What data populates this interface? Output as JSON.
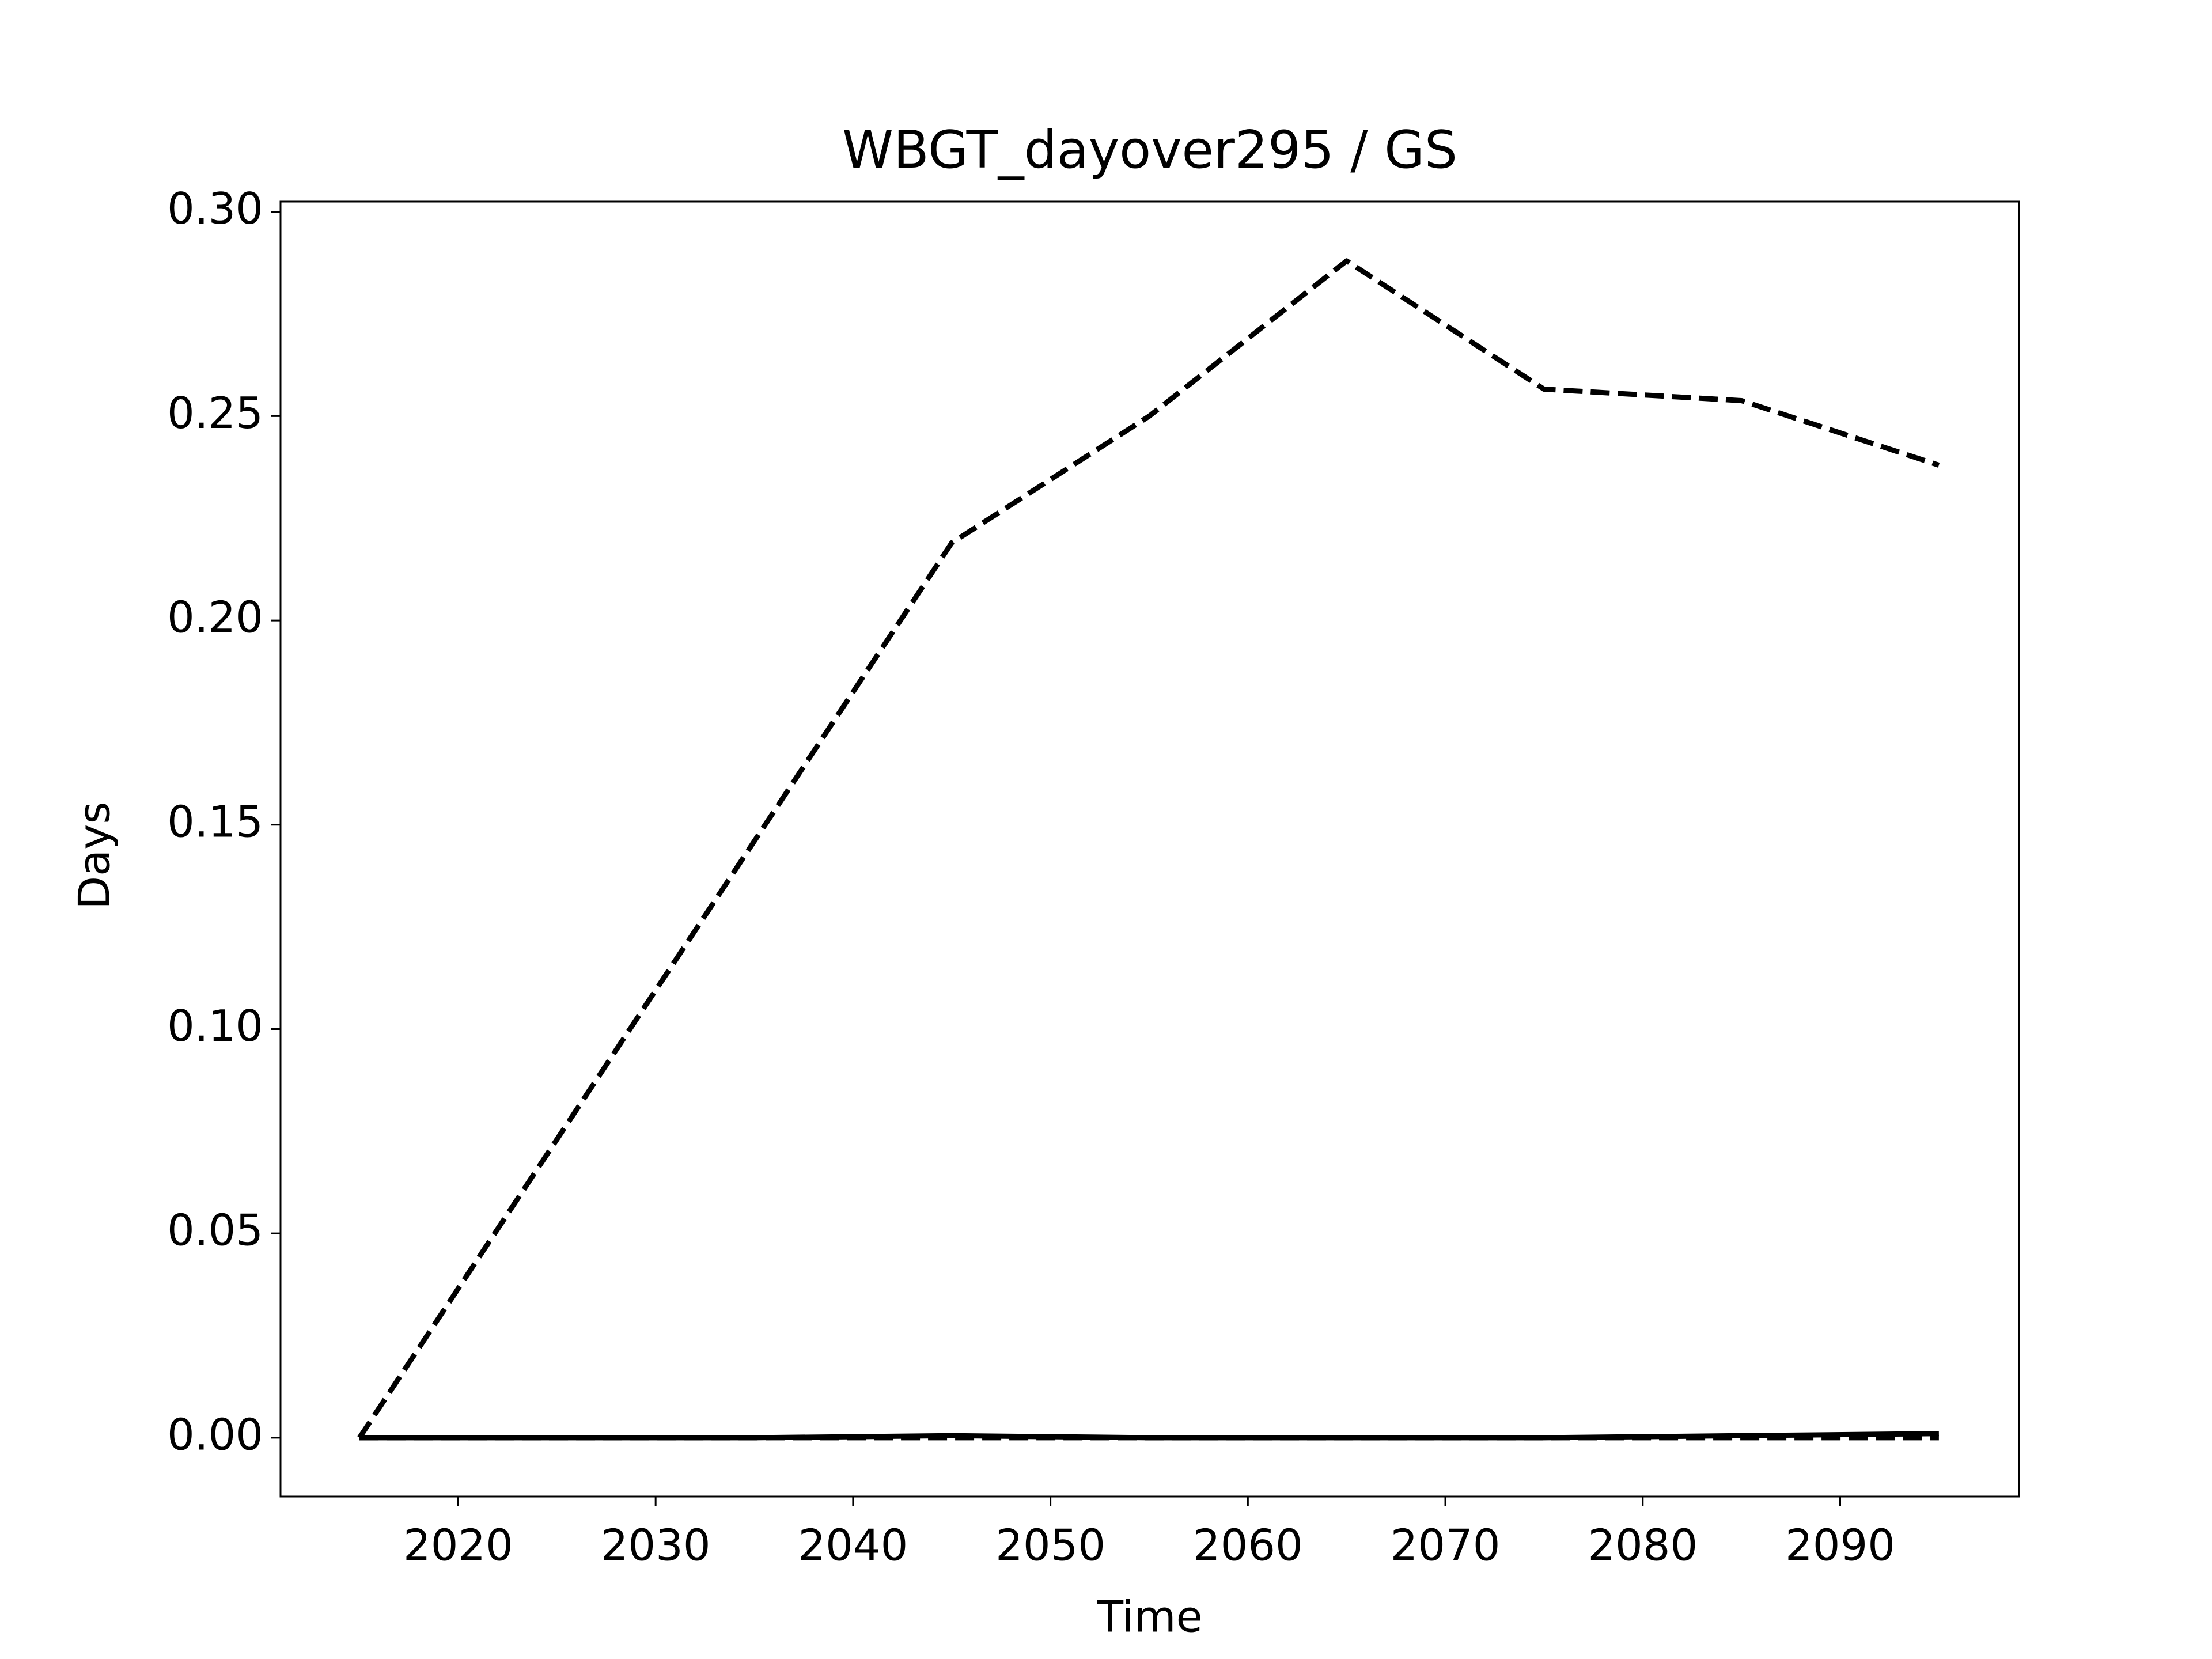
{
  "chart_data": {
    "type": "line",
    "title": "WBGT_dayover295 / GS",
    "x_label": "Time",
    "y_label": "Days",
    "x": [
      2015,
      2025,
      2035,
      2045,
      2055,
      2065,
      2075,
      2085,
      2095
    ],
    "series": [
      {
        "color": "#000000",
        "linestyle": "dashed",
        "values": [
          0,
          0.073,
          0.146,
          0.219,
          0.25,
          0.288,
          0.2566,
          0.2538,
          0.238
        ]
      },
      {
        "color": "#000000",
        "linestyle": "solid",
        "values": [
          0,
          0,
          0,
          0.0005,
          0,
          0,
          0,
          0.0005,
          0.001
        ]
      },
      {
        "color": "#000000",
        "linestyle": "dashed",
        "values": [
          0,
          0,
          0,
          0,
          0,
          0,
          0,
          0,
          0
        ]
      }
    ],
    "xlim": [
      2011.0,
      2099.06
    ],
    "xticks": [
      2020,
      2030,
      2040,
      2050,
      2060,
      2070,
      2080,
      2090
    ],
    "ylim": [
      -0.0144,
      0.3025
    ],
    "yticks": [
      {
        "value": 0,
        "label": "0.00"
      },
      {
        "value": 0.05,
        "label": "0.05"
      },
      {
        "value": 0.1,
        "label": "0.10"
      },
      {
        "value": 0.15,
        "label": "0.15"
      },
      {
        "value": 0.2,
        "label": "0.20"
      },
      {
        "value": 0.25,
        "label": "0.25"
      },
      {
        "value": 0.3,
        "label": "0.30"
      }
    ],
    "grid": false
  }
}
